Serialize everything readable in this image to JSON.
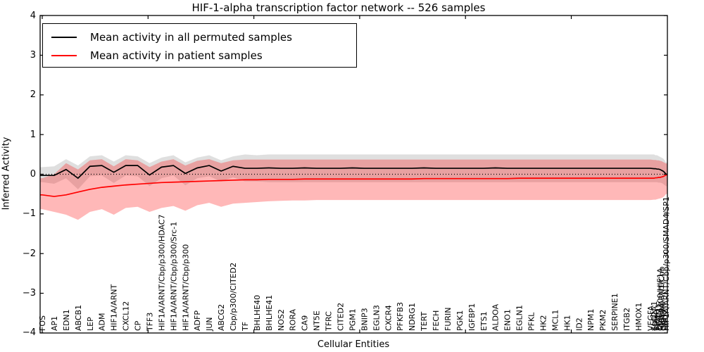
{
  "title": "HIF-1-alpha transcription factor network -- 526 samples",
  "axes": {
    "xlabel": "Cellular Entities",
    "ylabel": "Inferred Activity",
    "y_tick_labels": [
      "4",
      "3",
      "2",
      "1",
      "0",
      "−1",
      "−2",
      "−3",
      "−4"
    ],
    "y_tick_values": [
      4,
      3,
      2,
      1,
      0,
      -1,
      -2,
      -3,
      -4
    ],
    "ylim": [
      -4,
      4
    ]
  },
  "legend": {
    "entries": [
      {
        "label": "Mean activity in all permuted samples",
        "color": "#000000"
      },
      {
        "label": "Mean activity in patient samples",
        "color": "#ff0000"
      }
    ]
  },
  "colors": {
    "permuted_line": "#000000",
    "patient_line": "#ff0000",
    "permuted_band": "rgba(128,128,128,0.25)",
    "patient_band": "rgba(255,0,0,0.28)",
    "zero_line": "#000000",
    "background": "#ffffff"
  },
  "chart_data": {
    "type": "line",
    "title": "HIF-1-alpha transcription factor network -- 526 samples",
    "xlabel": "Cellular Entities",
    "ylabel": "Inferred Activity",
    "ylim": [
      -4,
      4
    ],
    "grid": false,
    "legend_position": "upper left",
    "zero_reference_line": 0,
    "crowded_tail_start_index": 52,
    "categories": [
      "FOS",
      "AP1",
      "EDN1",
      "ABCB1",
      "LEP",
      "ADM",
      "HIF1A/ARNT",
      "CXCL12",
      "CP",
      "TFF3",
      "HIF1A/ARNT/Cbp/p300/HDAC7",
      "HIF1A/ARNT/Cbp/p300/Src-1",
      "HIF1A/ARNT/Cbp/p300",
      "ADFP",
      "JUN",
      "ABCG2",
      "Cbp/p300/CITED2",
      "TF",
      "BHLHE40",
      "BHLHE41",
      "NOS2",
      "RORA",
      "CA9",
      "NT5E",
      "TFRC",
      "CITED2",
      "PGM1",
      "BNIP3",
      "EGLN3",
      "CXCR4",
      "PFKFB3",
      "NDRG1",
      "TERT",
      "FECH",
      "FURIN",
      "PGK1",
      "IGFBP1",
      "ETS1",
      "ALDOA",
      "ENO1",
      "EGLN1",
      "PFKL",
      "HK2",
      "MCL1",
      "HK1",
      "ID2",
      "NPM1",
      "PKM2",
      "SERPINE1",
      "ITGB2",
      "HMOX1",
      "VEGFA",
      "SLC2A1",
      "LDHA",
      "TPI1",
      "PGAM1",
      "Cbp/p300/HIF1A",
      "HIF1A/ARNT/Cbp",
      "GAPDH",
      "ENO2",
      "HIF1A/ARNT/Cbp/p300/SMAD4/SP1"
    ],
    "series": [
      {
        "name": "Mean activity in all permuted samples",
        "color": "#000000",
        "values": [
          -0.03,
          -0.03,
          0.12,
          -0.1,
          0.2,
          0.22,
          0.05,
          0.22,
          0.22,
          -0.02,
          0.18,
          0.22,
          0.02,
          0.16,
          0.22,
          0.08,
          0.2,
          0.15,
          0.15,
          0.16,
          0.15,
          0.15,
          0.16,
          0.15,
          0.15,
          0.15,
          0.16,
          0.15,
          0.15,
          0.15,
          0.15,
          0.15,
          0.16,
          0.15,
          0.15,
          0.15,
          0.15,
          0.15,
          0.16,
          0.15,
          0.15,
          0.15,
          0.15,
          0.15,
          0.15,
          0.15,
          0.15,
          0.15,
          0.15,
          0.15,
          0.15,
          0.15,
          0.14,
          0.14,
          0.13,
          0.13,
          0.12,
          0.1,
          0.08,
          0.05,
          0.0
        ],
        "band_upper": [
          0.18,
          0.2,
          0.38,
          0.22,
          0.45,
          0.48,
          0.32,
          0.48,
          0.45,
          0.28,
          0.42,
          0.48,
          0.3,
          0.42,
          0.48,
          0.35,
          0.45,
          0.5,
          0.48,
          0.5,
          0.5,
          0.5,
          0.5,
          0.5,
          0.5,
          0.5,
          0.5,
          0.5,
          0.5,
          0.5,
          0.5,
          0.5,
          0.5,
          0.5,
          0.5,
          0.5,
          0.5,
          0.5,
          0.5,
          0.5,
          0.5,
          0.5,
          0.5,
          0.5,
          0.5,
          0.5,
          0.5,
          0.5,
          0.5,
          0.5,
          0.5,
          0.5,
          0.5,
          0.48,
          0.48,
          0.46,
          0.44,
          0.42,
          0.4,
          0.36,
          0.3
        ],
        "band_lower": [
          -0.2,
          -0.24,
          -0.1,
          -0.38,
          -0.05,
          -0.03,
          -0.22,
          -0.03,
          -0.05,
          -0.3,
          -0.1,
          -0.03,
          -0.28,
          -0.1,
          -0.05,
          -0.18,
          -0.08,
          -0.18,
          -0.18,
          -0.2,
          -0.2,
          -0.2,
          -0.2,
          -0.2,
          -0.2,
          -0.2,
          -0.2,
          -0.2,
          -0.2,
          -0.2,
          -0.2,
          -0.2,
          -0.2,
          -0.2,
          -0.2,
          -0.2,
          -0.2,
          -0.2,
          -0.2,
          -0.2,
          -0.2,
          -0.2,
          -0.2,
          -0.2,
          -0.2,
          -0.2,
          -0.2,
          -0.2,
          -0.2,
          -0.2,
          -0.2,
          -0.2,
          -0.2,
          -0.2,
          -0.2,
          -0.21,
          -0.21,
          -0.22,
          -0.24,
          -0.27,
          -0.3
        ]
      },
      {
        "name": "Mean activity in patient samples",
        "color": "#ff0000",
        "values": [
          -0.52,
          -0.56,
          -0.52,
          -0.45,
          -0.38,
          -0.33,
          -0.3,
          -0.27,
          -0.25,
          -0.23,
          -0.21,
          -0.2,
          -0.19,
          -0.18,
          -0.17,
          -0.16,
          -0.15,
          -0.14,
          -0.14,
          -0.13,
          -0.13,
          -0.13,
          -0.12,
          -0.12,
          -0.12,
          -0.12,
          -0.12,
          -0.12,
          -0.12,
          -0.12,
          -0.12,
          -0.12,
          -0.11,
          -0.11,
          -0.11,
          -0.11,
          -0.11,
          -0.11,
          -0.11,
          -0.11,
          -0.1,
          -0.1,
          -0.1,
          -0.1,
          -0.1,
          -0.1,
          -0.1,
          -0.1,
          -0.1,
          -0.1,
          -0.1,
          -0.1,
          -0.1,
          -0.09,
          -0.09,
          -0.08,
          -0.08,
          -0.07,
          -0.06,
          -0.04,
          -0.02
        ],
        "band_upper": [
          -0.1,
          0.0,
          0.28,
          0.12,
          0.35,
          0.38,
          0.2,
          0.38,
          0.35,
          0.18,
          0.32,
          0.38,
          0.22,
          0.34,
          0.38,
          0.28,
          0.35,
          0.37,
          0.37,
          0.37,
          0.37,
          0.37,
          0.37,
          0.37,
          0.37,
          0.37,
          0.37,
          0.37,
          0.37,
          0.37,
          0.37,
          0.37,
          0.37,
          0.37,
          0.37,
          0.37,
          0.37,
          0.37,
          0.37,
          0.37,
          0.37,
          0.37,
          0.37,
          0.37,
          0.37,
          0.37,
          0.37,
          0.37,
          0.37,
          0.37,
          0.37,
          0.37,
          0.36,
          0.36,
          0.35,
          0.35,
          0.34,
          0.33,
          0.31,
          0.29,
          0.27
        ],
        "band_lower": [
          -0.88,
          -0.95,
          -1.02,
          -1.15,
          -0.95,
          -0.88,
          -1.02,
          -0.85,
          -0.82,
          -0.95,
          -0.85,
          -0.8,
          -0.92,
          -0.78,
          -0.72,
          -0.82,
          -0.74,
          -0.72,
          -0.7,
          -0.68,
          -0.67,
          -0.66,
          -0.66,
          -0.65,
          -0.65,
          -0.65,
          -0.65,
          -0.65,
          -0.65,
          -0.65,
          -0.65,
          -0.65,
          -0.65,
          -0.65,
          -0.65,
          -0.65,
          -0.65,
          -0.65,
          -0.65,
          -0.65,
          -0.65,
          -0.65,
          -0.65,
          -0.65,
          -0.65,
          -0.65,
          -0.65,
          -0.65,
          -0.65,
          -0.65,
          -0.65,
          -0.65,
          -0.64,
          -0.64,
          -0.63,
          -0.62,
          -0.61,
          -0.6,
          -0.58,
          -0.55,
          -0.5
        ]
      }
    ]
  }
}
